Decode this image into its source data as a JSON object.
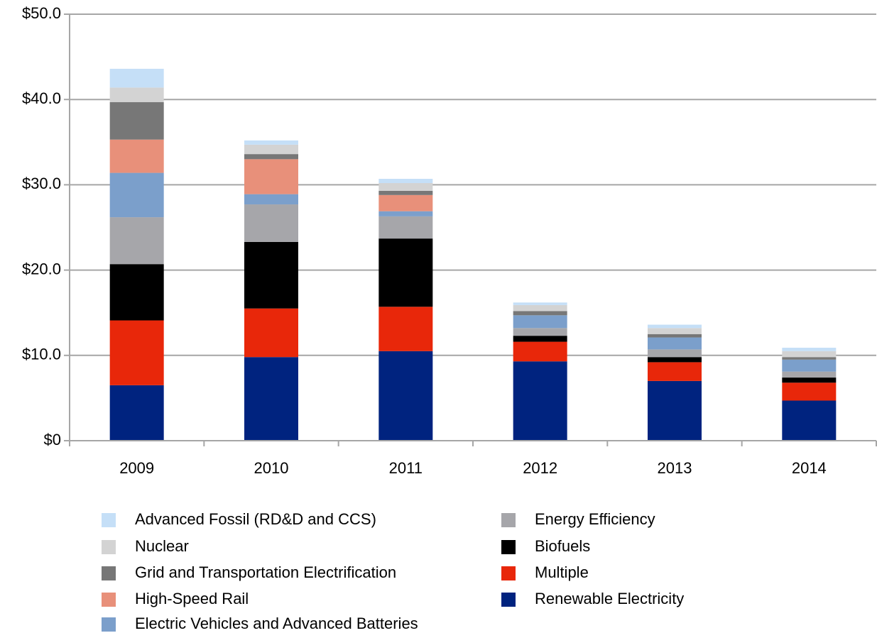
{
  "chart_data": {
    "type": "stacked_bar",
    "categories": [
      "2009",
      "2010",
      "2011",
      "2012",
      "2013",
      "2014"
    ],
    "series": [
      {
        "name": "Advanced Fossil (RD&D and CCS)",
        "color": "#c5dff7",
        "values": [
          2.2,
          0.5,
          0.5,
          0.3,
          0.4,
          0.4
        ]
      },
      {
        "name": "Nuclear",
        "color": "#d3d3d3",
        "values": [
          1.7,
          1.1,
          0.9,
          0.7,
          0.7,
          0.7
        ]
      },
      {
        "name": "Grid and Transportation Electrification",
        "color": "#777777",
        "values": [
          4.4,
          0.6,
          0.5,
          0.5,
          0.4,
          0.3
        ]
      },
      {
        "name": "High-Speed Rail",
        "color": "#e8907a",
        "values": [
          3.9,
          4.1,
          1.9,
          0,
          0,
          0
        ]
      },
      {
        "name": "Electric Vehicles and Advanced Batteries",
        "color": "#7b9fcb",
        "values": [
          5.2,
          1.2,
          0.6,
          1.5,
          1.4,
          1.4
        ]
      },
      {
        "name": "Energy Efficiency",
        "color": "#a6a6aa",
        "values": [
          5.5,
          4.4,
          2.6,
          0.9,
          0.9,
          0.7
        ]
      },
      {
        "name": "Biofuels",
        "color": "#000000",
        "values": [
          6.6,
          7.8,
          8.0,
          0.7,
          0.6,
          0.6
        ]
      },
      {
        "name": "Multiple",
        "color": "#e8270a",
        "values": [
          7.6,
          5.7,
          5.2,
          2.3,
          2.2,
          2.1
        ]
      },
      {
        "name": "Renewable Electricity",
        "color": "#00237f",
        "values": [
          6.5,
          9.8,
          10.5,
          9.3,
          7.0,
          4.7
        ]
      }
    ],
    "ylim": [
      0,
      50
    ],
    "yticks": [
      {
        "value": 0,
        "label": "$0"
      },
      {
        "value": 10,
        "label": "$10.0"
      },
      {
        "value": 20,
        "label": "$20.0"
      },
      {
        "value": 30,
        "label": "$30.0"
      },
      {
        "value": 40,
        "label": "$40.0"
      },
      {
        "value": 50,
        "label": "$50.0"
      }
    ],
    "grid": true,
    "legend": "bottom"
  }
}
